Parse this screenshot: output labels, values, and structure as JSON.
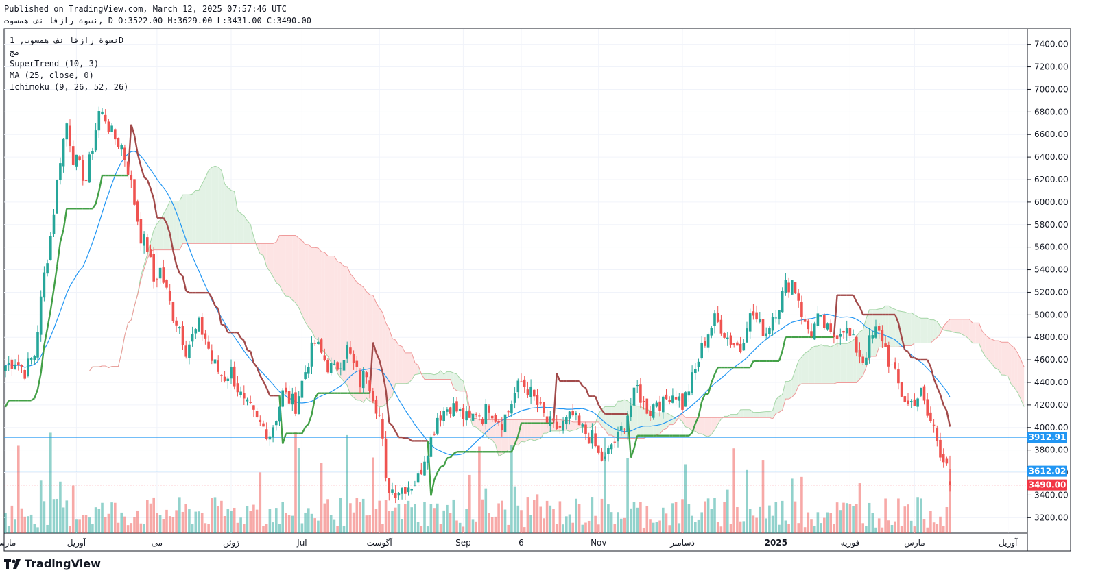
{
  "header": {
    "published_line": "Published on TradingView.com, March 12, 2025 07:57:46 UTC",
    "symbol_line": "نسوة رازفا نف همسوت, D O:3522.00 H:3629.00 L:3431.00 C:3490.00"
  },
  "legend": {
    "symbol": "نسوة رازفا نف همسوت, 1D",
    "exchange": "مج",
    "supertrend": "SuperTrend (10, 3)",
    "ma": "MA (25, close, 0)",
    "ichimoku": "Ichimoku (9, 26, 52, 26)"
  },
  "brand": {
    "name": "TradingView",
    "logo_icon": "tradingview-logo-icon"
  },
  "colors": {
    "up": "#26a69a",
    "down": "#ef5350",
    "supertrend_up": "#43a047",
    "supertrend_down": "#a24a4a",
    "ma": "#2196f3",
    "cloud_bull": "#e3f2e5",
    "cloud_bear": "#fde4e4",
    "price_badge": "#f23645",
    "level_badge": "#2196f3"
  },
  "chart_data": {
    "type": "candlestick",
    "ylim": [
      3050,
      7550
    ],
    "y_ticks": [
      3200,
      3400,
      3600,
      3800,
      4000,
      4200,
      4400,
      4600,
      4800,
      5000,
      5200,
      5400,
      5600,
      5800,
      6000,
      6200,
      6400,
      6600,
      6800,
      7000,
      7200,
      7400
    ],
    "x_labels": [
      {
        "label": "مارس",
        "i": 0
      },
      {
        "label": "آوریل",
        "i": 22
      },
      {
        "label": "می",
        "i": 47
      },
      {
        "label": "ژوئن",
        "i": 70
      },
      {
        "label": "Jul",
        "i": 92
      },
      {
        "label": "آگوست",
        "i": 116
      },
      {
        "label": "Sep",
        "i": 142
      },
      {
        "label": "6",
        "i": 160
      },
      {
        "label": "Nov",
        "i": 184
      },
      {
        "label": "دسامبر",
        "i": 210
      },
      {
        "label": "2025",
        "i": 239
      },
      {
        "label": "فوریه",
        "i": 262
      },
      {
        "label": "مارس",
        "i": 282
      },
      {
        "label": "آوریل",
        "i": 311
      }
    ],
    "last_price": {
      "value": 3490.0,
      "label": "3490.00"
    },
    "levels": [
      {
        "value": 3912.91,
        "label": "3912.91"
      },
      {
        "value": 3612.02,
        "label": "3612.02"
      }
    ],
    "close_anchors": [
      [
        0,
        4550
      ],
      [
        3,
        4600
      ],
      [
        6,
        4500
      ],
      [
        9,
        4650
      ],
      [
        12,
        5350
      ],
      [
        14,
        5700
      ],
      [
        17,
        6400
      ],
      [
        19,
        6700
      ],
      [
        21,
        6400
      ],
      [
        23,
        6300
      ],
      [
        25,
        6200
      ],
      [
        27,
        6500
      ],
      [
        29,
        6800
      ],
      [
        31,
        6750
      ],
      [
        33,
        6600
      ],
      [
        36,
        6500
      ],
      [
        38,
        6300
      ],
      [
        40,
        6000
      ],
      [
        42,
        5700
      ],
      [
        44,
        5600
      ],
      [
        46,
        5300
      ],
      [
        48,
        5400
      ],
      [
        50,
        5200
      ],
      [
        52,
        5000
      ],
      [
        54,
        4900
      ],
      [
        56,
        4700
      ],
      [
        58,
        4800
      ],
      [
        60,
        4900
      ],
      [
        62,
        4800
      ],
      [
        64,
        4600
      ],
      [
        66,
        4500
      ],
      [
        68,
        4450
      ],
      [
        70,
        4500
      ],
      [
        72,
        4350
      ],
      [
        74,
        4200
      ],
      [
        76,
        4150
      ],
      [
        78,
        4050
      ],
      [
        80,
        4000
      ],
      [
        82,
        3950
      ],
      [
        84,
        4100
      ],
      [
        86,
        4300
      ],
      [
        88,
        4250
      ],
      [
        90,
        4200
      ],
      [
        92,
        4400
      ],
      [
        94,
        4600
      ],
      [
        96,
        4750
      ],
      [
        98,
        4650
      ],
      [
        100,
        4550
      ],
      [
        102,
        4500
      ],
      [
        104,
        4600
      ],
      [
        106,
        4700
      ],
      [
        108,
        4550
      ],
      [
        110,
        4400
      ],
      [
        112,
        4500
      ],
      [
        114,
        4300
      ],
      [
        116,
        4100
      ],
      [
        117,
        3850
      ],
      [
        118,
        3500
      ],
      [
        120,
        3450
      ],
      [
        122,
        3450
      ],
      [
        124,
        3480
      ],
      [
        126,
        3500
      ],
      [
        128,
        3550
      ],
      [
        130,
        3750
      ],
      [
        132,
        3900
      ],
      [
        134,
        4100
      ],
      [
        136,
        4150
      ],
      [
        138,
        4200
      ],
      [
        140,
        4150
      ],
      [
        142,
        4100
      ],
      [
        144,
        4050
      ],
      [
        146,
        4150
      ],
      [
        148,
        4100
      ],
      [
        150,
        4200
      ],
      [
        152,
        4100
      ],
      [
        154,
        4050
      ],
      [
        156,
        4150
      ],
      [
        158,
        4300
      ],
      [
        160,
        4400
      ],
      [
        162,
        4350
      ],
      [
        164,
        4250
      ],
      [
        166,
        4150
      ],
      [
        168,
        4050
      ],
      [
        170,
        4000
      ],
      [
        172,
        4000
      ],
      [
        174,
        4050
      ],
      [
        176,
        4100
      ],
      [
        178,
        4000
      ],
      [
        180,
        3950
      ],
      [
        182,
        3900
      ],
      [
        184,
        3750
      ],
      [
        186,
        3700
      ],
      [
        188,
        3850
      ],
      [
        190,
        3900
      ],
      [
        192,
        4050
      ],
      [
        194,
        4200
      ],
      [
        196,
        4350
      ],
      [
        198,
        4200
      ],
      [
        200,
        4150
      ],
      [
        202,
        4250
      ],
      [
        204,
        4200
      ],
      [
        206,
        4300
      ],
      [
        208,
        4300
      ],
      [
        210,
        4200
      ],
      [
        212,
        4350
      ],
      [
        214,
        4500
      ],
      [
        216,
        4700
      ],
      [
        218,
        4850
      ],
      [
        220,
        4950
      ],
      [
        222,
        4900
      ],
      [
        224,
        4800
      ],
      [
        226,
        4750
      ],
      [
        228,
        4700
      ],
      [
        230,
        4950
      ],
      [
        232,
        5000
      ],
      [
        234,
        4900
      ],
      [
        236,
        4850
      ],
      [
        238,
        5000
      ],
      [
        240,
        5100
      ],
      [
        242,
        5250
      ],
      [
        244,
        5300
      ],
      [
        246,
        5150
      ],
      [
        248,
        4900
      ],
      [
        250,
        4850
      ],
      [
        252,
        4950
      ],
      [
        254,
        4900
      ],
      [
        256,
        4800
      ],
      [
        258,
        4850
      ],
      [
        260,
        4900
      ],
      [
        262,
        4800
      ],
      [
        264,
        4700
      ],
      [
        266,
        4600
      ],
      [
        268,
        4750
      ],
      [
        270,
        4850
      ],
      [
        272,
        4800
      ],
      [
        274,
        4600
      ],
      [
        276,
        4450
      ],
      [
        278,
        4300
      ],
      [
        280,
        4200
      ],
      [
        282,
        4250
      ],
      [
        284,
        4300
      ],
      [
        286,
        4100
      ],
      [
        288,
        4000
      ],
      [
        290,
        3800
      ],
      [
        292,
        3700
      ],
      [
        293,
        3490
      ]
    ],
    "volume_hint": "relative bar heights estimated"
  }
}
